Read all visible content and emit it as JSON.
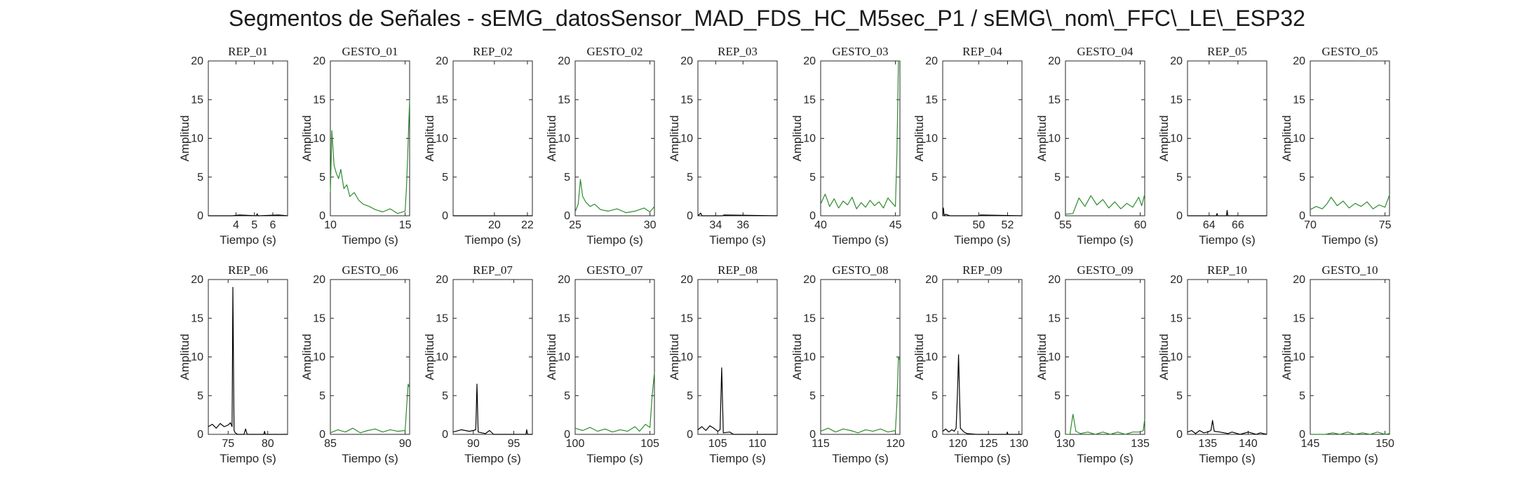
{
  "title": "Segmentos de Señales - sEMG_datosSensor_MAD_FDS_HC_M5sec_P1 / sEMG\\_nom\\_FFC\\_LE\\_ESP32",
  "colors": {
    "rep": "#000000",
    "gesto": "#2e8b2e"
  },
  "chart_data": [
    {
      "type": "line",
      "title": "REP_01",
      "color": "rep",
      "xlim": [
        2.5,
        6.8
      ],
      "ylim": [
        0,
        20
      ],
      "xticks": [
        4,
        5,
        6
      ],
      "yticks": [
        0,
        5,
        10,
        15,
        20
      ],
      "xlabel": "Tiempo (s)",
      "ylabel": "Amplitud",
      "series": [
        {
          "x": [
            2.5,
            3.8,
            4.2,
            5.1,
            5.15,
            5.2,
            6.3,
            6.8
          ],
          "y": [
            0,
            0,
            0.1,
            0,
            0.25,
            0,
            0.1,
            0
          ]
        }
      ]
    },
    {
      "type": "line",
      "title": "GESTO_01",
      "color": "gesto",
      "xlim": [
        10,
        15.3
      ],
      "ylim": [
        0,
        20
      ],
      "xticks": [
        10,
        15
      ],
      "yticks": [
        0,
        5,
        10,
        15,
        20
      ],
      "xlabel": "Tiempo (s)",
      "ylabel": "Amplitud",
      "series": [
        {
          "x": [
            10,
            10.1,
            10.25,
            10.4,
            10.55,
            10.7,
            10.9,
            11.1,
            11.3,
            11.6,
            11.9,
            12.2,
            12.6,
            13,
            13.5,
            14,
            14.5,
            15,
            15.1,
            15.3
          ],
          "y": [
            3,
            11,
            6.5,
            5.5,
            4.8,
            6,
            3.5,
            4,
            2.5,
            3,
            2,
            1.5,
            1.2,
            0.8,
            0.5,
            0.9,
            0.3,
            0.6,
            4,
            15
          ]
        }
      ]
    },
    {
      "type": "line",
      "title": "REP_02",
      "color": "rep",
      "xlim": [
        17.5,
        22.3
      ],
      "ylim": [
        0,
        20
      ],
      "xticks": [
        20,
        22
      ],
      "yticks": [
        0,
        5,
        10,
        15,
        20
      ],
      "xlabel": "Tiempo (s)",
      "ylabel": "Amplitud",
      "series": [
        {
          "x": [
            17.5,
            22.3
          ],
          "y": [
            0,
            0
          ]
        }
      ]
    },
    {
      "type": "line",
      "title": "GESTO_02",
      "color": "gesto",
      "xlim": [
        25,
        30.3
      ],
      "ylim": [
        0,
        20
      ],
      "xticks": [
        25,
        30
      ],
      "yticks": [
        0,
        5,
        10,
        15,
        20
      ],
      "xlabel": "Tiempo (s)",
      "ylabel": "Amplitud",
      "series": [
        {
          "x": [
            25,
            25.2,
            25.35,
            25.5,
            25.7,
            26,
            26.3,
            26.7,
            27.2,
            27.8,
            28.4,
            29,
            29.6,
            30,
            30.3
          ],
          "y": [
            0.5,
            1.5,
            4.7,
            2.5,
            1.8,
            1.2,
            1.5,
            0.8,
            0.6,
            0.9,
            0.4,
            0.6,
            1,
            0.5,
            1.2
          ]
        }
      ]
    },
    {
      "type": "line",
      "title": "REP_03",
      "color": "rep",
      "xlim": [
        32.7,
        38.5
      ],
      "ylim": [
        0,
        20
      ],
      "xticks": [
        34,
        36
      ],
      "yticks": [
        0,
        5,
        10,
        15,
        20
      ],
      "xlabel": "Tiempo (s)",
      "ylabel": "Amplitud",
      "series": [
        {
          "x": [
            32.7,
            32.9,
            33,
            33.1,
            34.5,
            34.6,
            38.5
          ],
          "y": [
            0,
            0.35,
            0,
            0,
            0,
            0.1,
            0
          ]
        }
      ]
    },
    {
      "type": "line",
      "title": "GESTO_03",
      "color": "gesto",
      "xlim": [
        40,
        45.3
      ],
      "ylim": [
        0,
        20
      ],
      "xticks": [
        40,
        45
      ],
      "yticks": [
        0,
        5,
        10,
        15,
        20
      ],
      "xlabel": "Tiempo (s)",
      "ylabel": "Amplitud",
      "series": [
        {
          "x": [
            40,
            40.3,
            40.6,
            40.9,
            41.2,
            41.5,
            41.8,
            42.1,
            42.4,
            42.7,
            43,
            43.3,
            43.6,
            43.9,
            44.2,
            44.5,
            44.8,
            45,
            45.1,
            45.2,
            45.3
          ],
          "y": [
            1.5,
            2.8,
            1.2,
            2.2,
            1,
            1.9,
            1.4,
            2.4,
            0.9,
            1.7,
            1.1,
            2,
            1.3,
            1.8,
            1,
            2.3,
            1.6,
            1.2,
            8,
            20,
            20
          ]
        }
      ]
    },
    {
      "type": "line",
      "title": "REP_04",
      "color": "rep",
      "xlim": [
        47.5,
        53
      ],
      "ylim": [
        0,
        20
      ],
      "xticks": [
        50,
        52
      ],
      "yticks": [
        0,
        5,
        10,
        15,
        20
      ],
      "xlabel": "Tiempo (s)",
      "ylabel": "Amplitud",
      "series": [
        {
          "x": [
            47.5,
            47.55,
            47.6,
            47.7,
            48,
            50,
            50.1,
            53
          ],
          "y": [
            0,
            1,
            0,
            0.2,
            0,
            0,
            0.1,
            0
          ]
        }
      ]
    },
    {
      "type": "line",
      "title": "GESTO_04",
      "color": "gesto",
      "xlim": [
        55,
        60.3
      ],
      "ylim": [
        0,
        20
      ],
      "xticks": [
        55,
        60
      ],
      "yticks": [
        0,
        5,
        10,
        15,
        20
      ],
      "xlabel": "Tiempo (s)",
      "ylabel": "Amplitud",
      "series": [
        {
          "x": [
            55,
            55.5,
            55.9,
            56.3,
            56.7,
            57.1,
            57.5,
            57.9,
            58.3,
            58.7,
            59.1,
            59.5,
            59.9,
            60.1,
            60.3
          ],
          "y": [
            0.2,
            0.3,
            2.3,
            1.2,
            2.6,
            1.4,
            2.1,
            1,
            1.8,
            0.9,
            1.6,
            1.1,
            2.4,
            1.3,
            2.8
          ]
        }
      ]
    },
    {
      "type": "line",
      "title": "REP_05",
      "color": "rep",
      "xlim": [
        62.5,
        68
      ],
      "ylim": [
        0,
        20
      ],
      "xticks": [
        64,
        66
      ],
      "yticks": [
        0,
        5,
        10,
        15,
        20
      ],
      "xlabel": "Tiempo (s)",
      "ylabel": "Amplitud",
      "series": [
        {
          "x": [
            62.5,
            64.5,
            64.55,
            64.6,
            65.2,
            65.25,
            65.3,
            68
          ],
          "y": [
            0,
            0,
            0.3,
            0,
            0,
            0.7,
            0,
            0
          ]
        }
      ]
    },
    {
      "type": "line",
      "title": "GESTO_05",
      "color": "gesto",
      "xlim": [
        70,
        75.3
      ],
      "ylim": [
        0,
        20
      ],
      "xticks": [
        70,
        75
      ],
      "yticks": [
        0,
        5,
        10,
        15,
        20
      ],
      "xlabel": "Tiempo (s)",
      "ylabel": "Amplitud",
      "series": [
        {
          "x": [
            70,
            70.4,
            70.8,
            71.1,
            71.4,
            71.8,
            72.2,
            72.6,
            73,
            73.4,
            73.8,
            74.2,
            74.6,
            75,
            75.3
          ],
          "y": [
            0.8,
            1.2,
            0.9,
            1.5,
            2.4,
            1.3,
            1.9,
            1,
            1.6,
            1.2,
            1.8,
            0.9,
            1.4,
            1.1,
            2.7
          ]
        }
      ]
    },
    {
      "type": "line",
      "title": "REP_06",
      "color": "rep",
      "xlim": [
        72.5,
        82.5
      ],
      "ylim": [
        0,
        20
      ],
      "xticks": [
        75,
        80
      ],
      "yticks": [
        0,
        5,
        10,
        15,
        20
      ],
      "xlabel": "Tiempo (s)",
      "ylabel": "Amplitud",
      "series": [
        {
          "x": [
            72.5,
            73,
            73.5,
            74,
            74.5,
            75,
            75.3,
            75.5,
            75.6,
            75.75,
            75.9,
            76.2,
            77,
            77.2,
            77.4,
            79.5,
            79.6,
            79.7,
            82.5
          ],
          "y": [
            1,
            1.3,
            0.8,
            1.4,
            1,
            1.2,
            1.5,
            1,
            19,
            0.5,
            0.2,
            0,
            0,
            0.7,
            0,
            0,
            0.4,
            0,
            0
          ]
        }
      ]
    },
    {
      "type": "line",
      "title": "GESTO_06",
      "color": "gesto",
      "xlim": [
        85,
        90.3
      ],
      "ylim": [
        0,
        20
      ],
      "xticks": [
        85,
        90
      ],
      "yticks": [
        0,
        5,
        10,
        15,
        20
      ],
      "xlabel": "Tiempo (s)",
      "ylabel": "Amplitud",
      "series": [
        {
          "x": [
            85,
            85.5,
            86,
            86.5,
            87,
            87.5,
            88,
            88.5,
            89,
            89.5,
            90,
            90.1,
            90.2,
            90.3
          ],
          "y": [
            0.2,
            0.6,
            0.3,
            0.8,
            0.2,
            0.5,
            0.7,
            0.3,
            0.6,
            0.4,
            0.5,
            3.5,
            6.5,
            6
          ]
        }
      ]
    },
    {
      "type": "line",
      "title": "REP_07",
      "color": "rep",
      "xlim": [
        87.5,
        97.3
      ],
      "ylim": [
        0,
        20
      ],
      "xticks": [
        90,
        95
      ],
      "yticks": [
        0,
        5,
        10,
        15,
        20
      ],
      "xlabel": "Tiempo (s)",
      "ylabel": "Amplitud",
      "series": [
        {
          "x": [
            87.5,
            88.5,
            89.5,
            90,
            90.3,
            90.45,
            90.6,
            91.5,
            92,
            92.5,
            94,
            96.5,
            96.6,
            96.7,
            97.3
          ],
          "y": [
            0.3,
            0.6,
            0.4,
            0.5,
            0.6,
            6.5,
            0.3,
            0.1,
            0.5,
            0,
            0,
            0,
            0.6,
            0,
            0
          ]
        }
      ]
    },
    {
      "type": "line",
      "title": "GESTO_07",
      "color": "gesto",
      "xlim": [
        100,
        105.3
      ],
      "ylim": [
        0,
        20
      ],
      "xticks": [
        100,
        105
      ],
      "yticks": [
        0,
        5,
        10,
        15,
        20
      ],
      "xlabel": "Tiempo (s)",
      "ylabel": "Amplitud",
      "series": [
        {
          "x": [
            100,
            100.5,
            101,
            101.5,
            102,
            102.5,
            103,
            103.5,
            104,
            104.3,
            104.7,
            105,
            105.15,
            105.3
          ],
          "y": [
            0.8,
            0.5,
            0.9,
            0.4,
            0.7,
            0.3,
            0.6,
            0.4,
            1,
            0.4,
            1.3,
            0.9,
            5,
            8
          ]
        }
      ]
    },
    {
      "type": "line",
      "title": "REP_08",
      "color": "rep",
      "xlim": [
        102.5,
        112.5
      ],
      "ylim": [
        0,
        20
      ],
      "xticks": [
        105,
        110
      ],
      "yticks": [
        0,
        5,
        10,
        15,
        20
      ],
      "xlabel": "Tiempo (s)",
      "ylabel": "Amplitud",
      "series": [
        {
          "x": [
            102.5,
            103,
            103.5,
            104,
            104.5,
            105,
            105.3,
            105.5,
            105.7,
            106.5,
            107,
            108,
            112.5
          ],
          "y": [
            0.6,
            1,
            0.5,
            1.1,
            0.8,
            0.4,
            0.6,
            8.6,
            0.2,
            0.3,
            0,
            0,
            0
          ]
        }
      ]
    },
    {
      "type": "line",
      "title": "GESTO_08",
      "color": "gesto",
      "xlim": [
        115,
        120.3
      ],
      "ylim": [
        0,
        20
      ],
      "xticks": [
        115,
        120
      ],
      "yticks": [
        0,
        5,
        10,
        15,
        20
      ],
      "xlabel": "Tiempo (s)",
      "ylabel": "Amplitud",
      "series": [
        {
          "x": [
            115,
            115.5,
            116,
            116.5,
            117,
            117.5,
            118,
            118.5,
            119,
            119.5,
            120,
            120.1,
            120.2,
            120.3
          ],
          "y": [
            0.4,
            0.8,
            0.3,
            0.7,
            0.5,
            0.2,
            0.6,
            0.4,
            0.7,
            0.3,
            0.5,
            4,
            10,
            9.5
          ]
        }
      ]
    },
    {
      "type": "line",
      "title": "REP_09",
      "color": "rep",
      "xlim": [
        117.5,
        130.5
      ],
      "ylim": [
        0,
        20
      ],
      "xticks": [
        120,
        125,
        130
      ],
      "yticks": [
        0,
        5,
        10,
        15,
        20
      ],
      "xlabel": "Tiempo (s)",
      "ylabel": "Amplitud",
      "series": [
        {
          "x": [
            117.5,
            118,
            118.5,
            119,
            119.4,
            119.7,
            119.9,
            120.1,
            120.4,
            121,
            121.5,
            123,
            125,
            128,
            128.1,
            128.2,
            130.5
          ],
          "y": [
            0.4,
            0.7,
            0.3,
            0.6,
            0.4,
            0.8,
            5,
            10.3,
            0.8,
            0.3,
            0.1,
            0,
            0,
            0,
            0.3,
            0,
            0
          ]
        }
      ]
    },
    {
      "type": "line",
      "title": "GESTO_09",
      "color": "gesto",
      "xlim": [
        130,
        135.3
      ],
      "ylim": [
        0,
        20
      ],
      "xticks": [
        130,
        135
      ],
      "yticks": [
        0,
        5,
        10,
        15,
        20
      ],
      "xlabel": "Tiempo (s)",
      "ylabel": "Amplitud",
      "series": [
        {
          "x": [
            130,
            130.3,
            130.5,
            130.7,
            131,
            131.5,
            132,
            132.5,
            133,
            133.5,
            134,
            134.5,
            135,
            135.2,
            135.3
          ],
          "y": [
            0,
            0,
            2.6,
            0.4,
            0.1,
            0.3,
            0,
            0.3,
            0,
            0.3,
            0,
            0.3,
            0.3,
            0.5,
            2
          ]
        }
      ]
    },
    {
      "type": "line",
      "title": "REP_10",
      "color": "rep",
      "xlim": [
        132.5,
        142.3
      ],
      "ylim": [
        0,
        20
      ],
      "xticks": [
        135,
        140
      ],
      "yticks": [
        0,
        5,
        10,
        15,
        20
      ],
      "xlabel": "Tiempo (s)",
      "ylabel": "Amplitud",
      "series": [
        {
          "x": [
            132.5,
            133,
            133.5,
            134,
            134.5,
            135,
            135.4,
            135.6,
            135.8,
            136.5,
            137.5,
            138,
            139,
            140,
            141,
            141.5,
            142.3
          ],
          "y": [
            0.3,
            0.5,
            0.1,
            0.5,
            0.2,
            0.3,
            0.5,
            1.8,
            0.4,
            0.3,
            0.1,
            0.3,
            0,
            0.3,
            0,
            0.2,
            0
          ]
        }
      ]
    },
    {
      "type": "line",
      "title": "GESTO_10",
      "color": "gesto",
      "xlim": [
        145,
        150.3
      ],
      "ylim": [
        0,
        20
      ],
      "xticks": [
        145,
        150
      ],
      "yticks": [
        0,
        5,
        10,
        15,
        20
      ],
      "xlabel": "Tiempo (s)",
      "ylabel": "Amplitud",
      "series": [
        {
          "x": [
            145,
            146,
            146.5,
            147,
            147.5,
            148,
            148.5,
            149,
            149.5,
            150,
            150.3
          ],
          "y": [
            0,
            0,
            0.2,
            0,
            0.3,
            0,
            0.2,
            0,
            0.3,
            0,
            0.1
          ]
        }
      ]
    }
  ]
}
